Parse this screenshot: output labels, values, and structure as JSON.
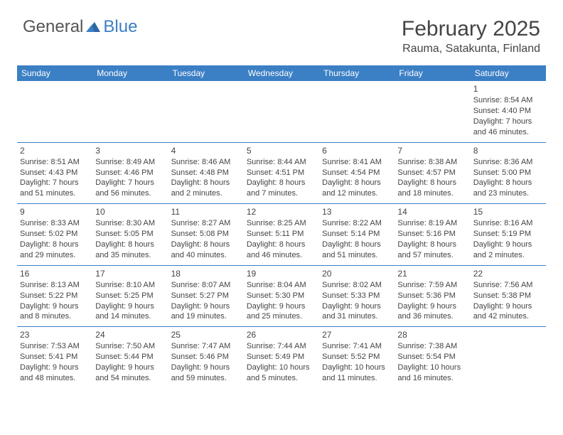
{
  "logo": {
    "text1": "General",
    "text2": "Blue"
  },
  "title": "February 2025",
  "location": "Rauma, Satakunta, Finland",
  "colors": {
    "header_bg": "#3b7fc4",
    "header_text": "#ffffff",
    "rule": "#3b7fc4",
    "text": "#444444",
    "logo_gray": "#555555",
    "logo_blue": "#3b7fc4",
    "background": "#ffffff"
  },
  "day_names": [
    "Sunday",
    "Monday",
    "Tuesday",
    "Wednesday",
    "Thursday",
    "Friday",
    "Saturday"
  ],
  "weeks": [
    [
      null,
      null,
      null,
      null,
      null,
      null,
      {
        "n": "1",
        "sunrise": "8:54 AM",
        "sunset": "4:40 PM",
        "daylight": "7 hours and 46 minutes."
      }
    ],
    [
      {
        "n": "2",
        "sunrise": "8:51 AM",
        "sunset": "4:43 PM",
        "daylight": "7 hours and 51 minutes."
      },
      {
        "n": "3",
        "sunrise": "8:49 AM",
        "sunset": "4:46 PM",
        "daylight": "7 hours and 56 minutes."
      },
      {
        "n": "4",
        "sunrise": "8:46 AM",
        "sunset": "4:48 PM",
        "daylight": "8 hours and 2 minutes."
      },
      {
        "n": "5",
        "sunrise": "8:44 AM",
        "sunset": "4:51 PM",
        "daylight": "8 hours and 7 minutes."
      },
      {
        "n": "6",
        "sunrise": "8:41 AM",
        "sunset": "4:54 PM",
        "daylight": "8 hours and 12 minutes."
      },
      {
        "n": "7",
        "sunrise": "8:38 AM",
        "sunset": "4:57 PM",
        "daylight": "8 hours and 18 minutes."
      },
      {
        "n": "8",
        "sunrise": "8:36 AM",
        "sunset": "5:00 PM",
        "daylight": "8 hours and 23 minutes."
      }
    ],
    [
      {
        "n": "9",
        "sunrise": "8:33 AM",
        "sunset": "5:02 PM",
        "daylight": "8 hours and 29 minutes."
      },
      {
        "n": "10",
        "sunrise": "8:30 AM",
        "sunset": "5:05 PM",
        "daylight": "8 hours and 35 minutes."
      },
      {
        "n": "11",
        "sunrise": "8:27 AM",
        "sunset": "5:08 PM",
        "daylight": "8 hours and 40 minutes."
      },
      {
        "n": "12",
        "sunrise": "8:25 AM",
        "sunset": "5:11 PM",
        "daylight": "8 hours and 46 minutes."
      },
      {
        "n": "13",
        "sunrise": "8:22 AM",
        "sunset": "5:14 PM",
        "daylight": "8 hours and 51 minutes."
      },
      {
        "n": "14",
        "sunrise": "8:19 AM",
        "sunset": "5:16 PM",
        "daylight": "8 hours and 57 minutes."
      },
      {
        "n": "15",
        "sunrise": "8:16 AM",
        "sunset": "5:19 PM",
        "daylight": "9 hours and 2 minutes."
      }
    ],
    [
      {
        "n": "16",
        "sunrise": "8:13 AM",
        "sunset": "5:22 PM",
        "daylight": "9 hours and 8 minutes."
      },
      {
        "n": "17",
        "sunrise": "8:10 AM",
        "sunset": "5:25 PM",
        "daylight": "9 hours and 14 minutes."
      },
      {
        "n": "18",
        "sunrise": "8:07 AM",
        "sunset": "5:27 PM",
        "daylight": "9 hours and 19 minutes."
      },
      {
        "n": "19",
        "sunrise": "8:04 AM",
        "sunset": "5:30 PM",
        "daylight": "9 hours and 25 minutes."
      },
      {
        "n": "20",
        "sunrise": "8:02 AM",
        "sunset": "5:33 PM",
        "daylight": "9 hours and 31 minutes."
      },
      {
        "n": "21",
        "sunrise": "7:59 AM",
        "sunset": "5:36 PM",
        "daylight": "9 hours and 36 minutes."
      },
      {
        "n": "22",
        "sunrise": "7:56 AM",
        "sunset": "5:38 PM",
        "daylight": "9 hours and 42 minutes."
      }
    ],
    [
      {
        "n": "23",
        "sunrise": "7:53 AM",
        "sunset": "5:41 PM",
        "daylight": "9 hours and 48 minutes."
      },
      {
        "n": "24",
        "sunrise": "7:50 AM",
        "sunset": "5:44 PM",
        "daylight": "9 hours and 54 minutes."
      },
      {
        "n": "25",
        "sunrise": "7:47 AM",
        "sunset": "5:46 PM",
        "daylight": "9 hours and 59 minutes."
      },
      {
        "n": "26",
        "sunrise": "7:44 AM",
        "sunset": "5:49 PM",
        "daylight": "10 hours and 5 minutes."
      },
      {
        "n": "27",
        "sunrise": "7:41 AM",
        "sunset": "5:52 PM",
        "daylight": "10 hours and 11 minutes."
      },
      {
        "n": "28",
        "sunrise": "7:38 AM",
        "sunset": "5:54 PM",
        "daylight": "10 hours and 16 minutes."
      },
      null
    ]
  ]
}
